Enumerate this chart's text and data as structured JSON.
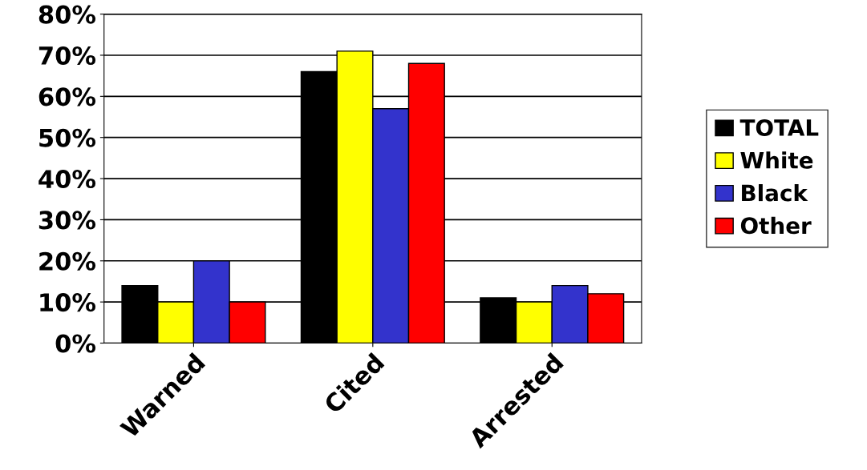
{
  "chart_data": {
    "type": "bar",
    "categories": [
      "Warned",
      "Cited",
      "Arrested"
    ],
    "series": [
      {
        "name": "TOTAL",
        "color": "#000000",
        "values": [
          14,
          66,
          11
        ]
      },
      {
        "name": "White",
        "color": "#ffff00",
        "values": [
          10,
          71,
          10
        ]
      },
      {
        "name": "Black",
        "color": "#3333cc",
        "values": [
          20,
          57,
          14
        ]
      },
      {
        "name": "Other",
        "color": "#ff0000",
        "values": [
          10,
          68,
          12
        ]
      }
    ],
    "ylim": [
      0,
      80
    ],
    "yticks": [
      {
        "value": 0,
        "label": "0%"
      },
      {
        "value": 10,
        "label": "10%"
      },
      {
        "value": 20,
        "label": "20%"
      },
      {
        "value": 30,
        "label": "30%"
      },
      {
        "value": 40,
        "label": "40%"
      },
      {
        "value": 50,
        "label": "50%"
      },
      {
        "value": 60,
        "label": "60%"
      },
      {
        "value": 70,
        "label": "70%"
      },
      {
        "value": 80,
        "label": "80%"
      }
    ],
    "grid": "y",
    "legend": "right"
  }
}
